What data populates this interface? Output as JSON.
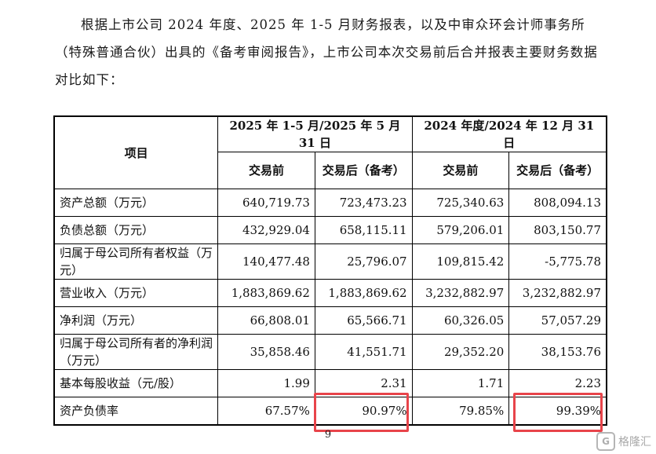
{
  "paragraph": "根据上市公司 2024 年度、2025 年 1-5 月财务报表，以及中审众环会计师事务所（特殊普通合伙）出具的《备考审阅报告》，上市公司本次交易前后合并报表主要财务数据对比如下：",
  "table": {
    "item_header": "项目",
    "period_headers": [
      "2025 年 1-5 月/2025 年 5 月 31 日",
      "2024 年度/2024 年 12 月 31 日"
    ],
    "sub_headers": [
      "交易前",
      "交易后（备考）",
      "交易前",
      "交易后（备考）"
    ],
    "rows": [
      {
        "label": "资产总额（万元）",
        "values": [
          "640,719.73",
          "723,473.23",
          "725,340.63",
          "808,094.13"
        ]
      },
      {
        "label": "负债总额（万元）",
        "values": [
          "432,929.04",
          "658,115.11",
          "579,206.01",
          "803,150.77"
        ]
      },
      {
        "label": "归属于母公司所有者权益（万元）",
        "values": [
          "140,477.48",
          "25,796.07",
          "109,815.42",
          "-5,775.78"
        ]
      },
      {
        "label": "营业收入（万元）",
        "values": [
          "1,883,869.62",
          "1,883,869.62",
          "3,232,882.97",
          "3,232,882.97"
        ]
      },
      {
        "label": "净利润（万元）",
        "values": [
          "66,808.01",
          "65,566.71",
          "60,326.05",
          "57,057.29"
        ]
      },
      {
        "label": "归属于母公司所有者的净利润（万元）",
        "values": [
          "35,858.46",
          "41,551.71",
          "29,352.20",
          "38,153.76"
        ]
      },
      {
        "label": "基本每股收益（元/股）",
        "values": [
          "1.99",
          "2.31",
          "1.71",
          "2.23"
        ]
      },
      {
        "label": "资产负债率",
        "values": [
          "67.57%",
          "90.97%",
          "79.85%",
          "99.39%"
        ]
      }
    ]
  },
  "highlight_color": "#e8444a",
  "page_number": "9",
  "watermark": {
    "logo": "G",
    "text": "格隆汇"
  }
}
